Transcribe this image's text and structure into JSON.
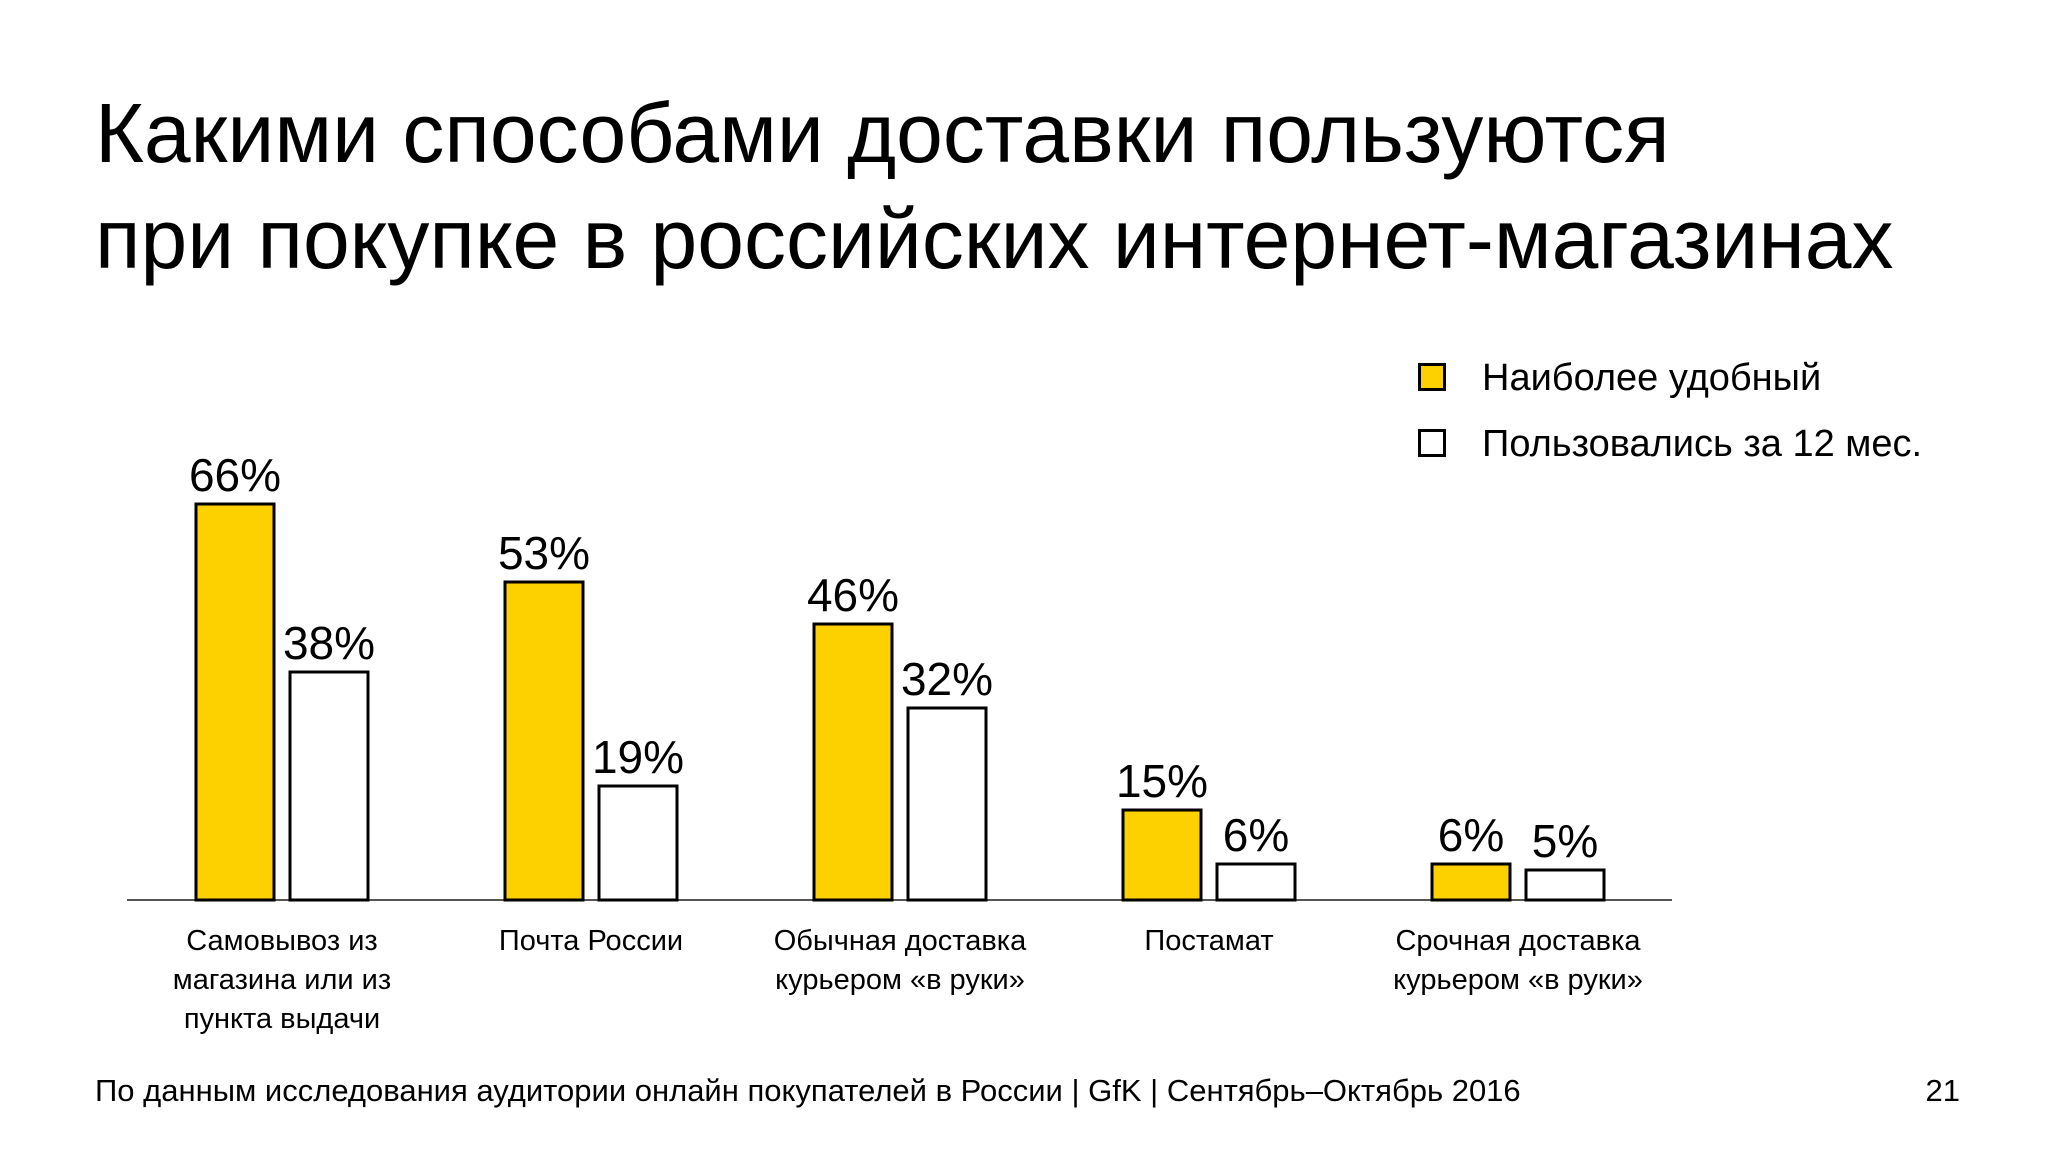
{
  "title": {
    "lines": [
      "Какими способами доставки пользуются",
      "при покупке в российских интернет-магазинах"
    ]
  },
  "colors": {
    "accent": "#FDD000",
    "outline": "#000000",
    "background": "#FFFFFF"
  },
  "legend": [
    {
      "label": "Наиболее удобный",
      "color": "#FDD000"
    },
    {
      "label": "Пользовались за 12 мес.",
      "color": "#FFFFFF"
    }
  ],
  "chart_data": {
    "type": "bar",
    "categories": [
      [
        "Самовывоз из",
        "магазина или из",
        "пункта выдачи"
      ],
      [
        "Почта России"
      ],
      [
        "Обычная доставка",
        "курьером «в руки»"
      ],
      [
        "Постамат"
      ],
      [
        "Срочная доставка",
        "курьером «в руки»"
      ]
    ],
    "series": [
      {
        "name": "Наиболее удобный",
        "values": [
          66,
          53,
          46,
          15,
          6
        ],
        "labels": [
          "66%",
          "53%",
          "46%",
          "15%",
          "6%"
        ],
        "color": "#FDD000"
      },
      {
        "name": "Пользовались за 12 мес.",
        "values": [
          38,
          19,
          32,
          6,
          5
        ],
        "labels": [
          "38%",
          "19%",
          "32%",
          "6%",
          "5%"
        ],
        "color": "#FFFFFF"
      }
    ],
    "ylim": [
      0,
      70
    ],
    "grid": false,
    "legend_position": "top-right"
  },
  "footer": {
    "source": "По данным исследования аудитории онлайн покупателей в России | GfK | Сентябрь–Октябрь 2016",
    "page_number": "21"
  }
}
